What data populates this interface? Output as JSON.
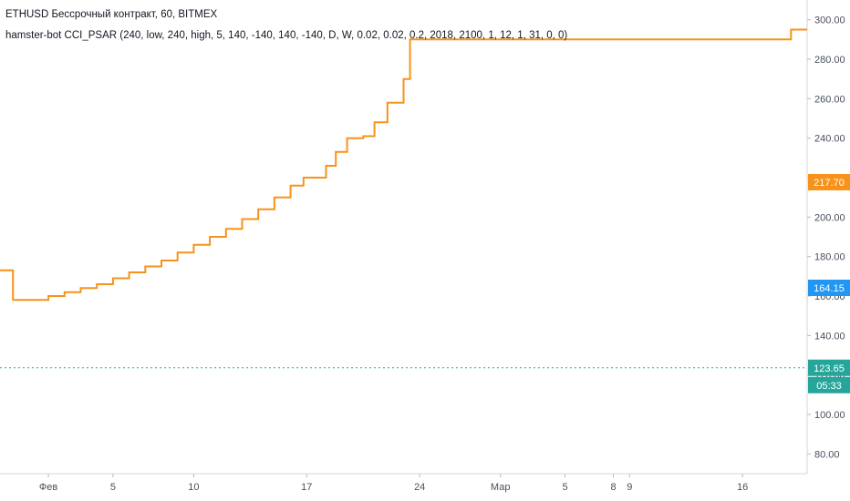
{
  "header": {
    "symbol_line": "ETHUSD Бессрочный контракт, 60, BITMEX",
    "indicator_line": "hamster-bot CCI_PSAR (240, low, 240, high, 5, 140, -140, 140, -140, D, W, 0.02, 0.02, 0.2, 2018, 2100, 1, 12, 1, 31, 0, 0)"
  },
  "badges": {
    "orange_level": "217.70",
    "blue_level": "164.15",
    "last_price": "123.65",
    "countdown": "05:33"
  },
  "colors": {
    "orange": "#f7931a",
    "blue": "#2196f3",
    "green_candle": "#26a69a",
    "red_candle": "#ef5350",
    "signal_bar": "#66bb6a",
    "marker": "#e040fb",
    "label_bg": "#f44336",
    "last_price": "#26a69a"
  },
  "chart_data": {
    "type": "line",
    "y_axis": {
      "position": "right",
      "ylim": [
        70,
        310
      ],
      "ticks": [
        80,
        100,
        120,
        140,
        160,
        180,
        200,
        220,
        240,
        260,
        280,
        300
      ],
      "tick_labels": [
        "80.00",
        "100.00",
        "120.00",
        "140.00",
        "160.00",
        "180.00",
        "200.00",
        "220.00",
        "240.00",
        "260.00",
        "280.00",
        "300.00"
      ]
    },
    "x_axis": {
      "ticks": [
        {
          "label": "Фев",
          "day": 1
        },
        {
          "label": "5",
          "day": 5
        },
        {
          "label": "10",
          "day": 10
        },
        {
          "label": "17",
          "day": 17
        },
        {
          "label": "24",
          "day": 24
        },
        {
          "label": "Мар",
          "day": 29
        },
        {
          "label": "5",
          "day": 33
        },
        {
          "label": "8",
          "day": 36
        },
        {
          "label": "9",
          "day": 37
        },
        {
          "label": "16",
          "day": 44
        }
      ],
      "range": [
        -2,
        48
      ]
    },
    "series": [
      {
        "kind": "step",
        "color": "orange",
        "points": [
          [
            -2,
            173
          ],
          [
            -1.2,
            173
          ],
          [
            -1.2,
            158
          ],
          [
            1,
            158
          ],
          [
            1,
            160
          ],
          [
            2,
            160
          ],
          [
            2,
            162
          ],
          [
            3,
            162
          ],
          [
            3,
            164
          ],
          [
            4,
            164
          ],
          [
            4,
            166
          ],
          [
            5,
            166
          ],
          [
            5,
            169
          ],
          [
            6,
            169
          ],
          [
            6,
            172
          ],
          [
            7,
            172
          ],
          [
            7,
            175
          ],
          [
            8,
            175
          ],
          [
            8,
            178
          ],
          [
            9,
            178
          ],
          [
            9,
            182
          ],
          [
            10,
            182
          ],
          [
            10,
            186
          ],
          [
            11,
            186
          ],
          [
            11,
            190
          ],
          [
            12,
            190
          ],
          [
            12,
            194
          ],
          [
            13,
            194
          ],
          [
            13,
            199
          ],
          [
            14,
            199
          ],
          [
            14,
            204
          ],
          [
            15,
            204
          ],
          [
            15,
            210
          ],
          [
            16,
            210
          ],
          [
            16,
            216
          ],
          [
            16.8,
            216
          ],
          [
            16.8,
            220
          ],
          [
            18.2,
            220
          ],
          [
            18.2,
            226
          ],
          [
            18.8,
            226
          ],
          [
            18.8,
            233
          ],
          [
            19.5,
            233
          ],
          [
            19.5,
            240
          ],
          [
            20.5,
            240
          ],
          [
            20.5,
            241
          ],
          [
            21.2,
            241
          ],
          [
            21.2,
            248
          ],
          [
            22,
            248
          ],
          [
            22,
            258
          ],
          [
            23,
            258
          ],
          [
            23,
            270
          ],
          [
            23.4,
            270
          ],
          [
            23.4,
            290
          ],
          [
            47,
            290
          ],
          [
            47,
            295
          ],
          [
            48,
            295
          ]
        ],
        "note": "approximate visual series"
      }
    ]
  }
}
